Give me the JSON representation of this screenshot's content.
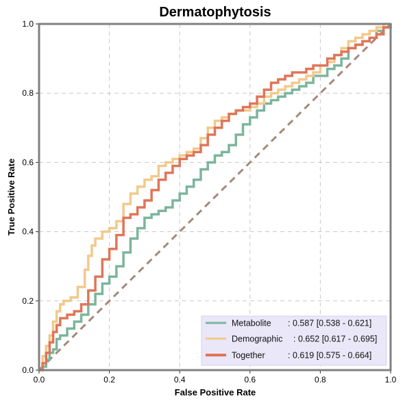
{
  "chart_data": {
    "type": "line",
    "title": "Dermatophytosis",
    "xlabel": "False Positive Rate",
    "ylabel": "True Positive Rate",
    "xlim": [
      0.0,
      1.0
    ],
    "ylim": [
      0.0,
      1.0
    ],
    "xticks": [
      "0.0",
      "0.2",
      "0.4",
      "0.6",
      "0.8",
      "1.0"
    ],
    "yticks": [
      "0.0",
      "0.2",
      "0.4",
      "0.6",
      "0.8",
      "1.0"
    ],
    "grid": true,
    "legend_position": "bottom-right",
    "diagonal": {
      "color": "#a6887a",
      "points": [
        [
          0,
          0
        ],
        [
          1,
          1
        ]
      ]
    },
    "series": [
      {
        "name": "Metabolite",
        "stat": ": 0.587 [0.538 - 0.621]",
        "color": "#7bb59c",
        "points": [
          [
            0,
            0
          ],
          [
            0.01,
            0.01
          ],
          [
            0.02,
            0.03
          ],
          [
            0.03,
            0.05
          ],
          [
            0.04,
            0.06
          ],
          [
            0.05,
            0.09
          ],
          [
            0.06,
            0.1
          ],
          [
            0.08,
            0.12
          ],
          [
            0.1,
            0.14
          ],
          [
            0.12,
            0.16
          ],
          [
            0.14,
            0.19
          ],
          [
            0.16,
            0.22
          ],
          [
            0.18,
            0.25
          ],
          [
            0.2,
            0.27
          ],
          [
            0.22,
            0.3
          ],
          [
            0.24,
            0.34
          ],
          [
            0.26,
            0.38
          ],
          [
            0.28,
            0.41
          ],
          [
            0.3,
            0.44
          ],
          [
            0.32,
            0.45
          ],
          [
            0.34,
            0.46
          ],
          [
            0.36,
            0.47
          ],
          [
            0.38,
            0.49
          ],
          [
            0.4,
            0.51
          ],
          [
            0.42,
            0.53
          ],
          [
            0.44,
            0.55
          ],
          [
            0.46,
            0.58
          ],
          [
            0.48,
            0.6
          ],
          [
            0.5,
            0.62
          ],
          [
            0.52,
            0.63
          ],
          [
            0.54,
            0.65
          ],
          [
            0.56,
            0.68
          ],
          [
            0.58,
            0.71
          ],
          [
            0.6,
            0.73
          ],
          [
            0.62,
            0.75
          ],
          [
            0.64,
            0.77
          ],
          [
            0.66,
            0.78
          ],
          [
            0.68,
            0.79
          ],
          [
            0.7,
            0.8
          ],
          [
            0.72,
            0.81
          ],
          [
            0.74,
            0.82
          ],
          [
            0.76,
            0.83
          ],
          [
            0.78,
            0.85
          ],
          [
            0.8,
            0.85
          ],
          [
            0.82,
            0.87
          ],
          [
            0.84,
            0.88
          ],
          [
            0.86,
            0.9
          ],
          [
            0.88,
            0.93
          ],
          [
            0.9,
            0.94
          ],
          [
            0.92,
            0.95
          ],
          [
            0.94,
            0.96
          ],
          [
            0.96,
            0.98
          ],
          [
            0.98,
            0.99
          ],
          [
            1.0,
            1.0
          ]
        ]
      },
      {
        "name": "Demographic",
        "stat": ": 0.652 [0.617 - 0.695]",
        "color": "#f2c98b",
        "points": [
          [
            0,
            0
          ],
          [
            0.01,
            0.04
          ],
          [
            0.02,
            0.07
          ],
          [
            0.03,
            0.1
          ],
          [
            0.04,
            0.14
          ],
          [
            0.05,
            0.17
          ],
          [
            0.06,
            0.19
          ],
          [
            0.07,
            0.2
          ],
          [
            0.09,
            0.21
          ],
          [
            0.11,
            0.24
          ],
          [
            0.13,
            0.29
          ],
          [
            0.14,
            0.33
          ],
          [
            0.15,
            0.36
          ],
          [
            0.16,
            0.38
          ],
          [
            0.18,
            0.4
          ],
          [
            0.2,
            0.41
          ],
          [
            0.22,
            0.43
          ],
          [
            0.24,
            0.48
          ],
          [
            0.26,
            0.51
          ],
          [
            0.28,
            0.53
          ],
          [
            0.3,
            0.55
          ],
          [
            0.32,
            0.56
          ],
          [
            0.34,
            0.59
          ],
          [
            0.36,
            0.6
          ],
          [
            0.38,
            0.61
          ],
          [
            0.4,
            0.62
          ],
          [
            0.42,
            0.63
          ],
          [
            0.44,
            0.64
          ],
          [
            0.46,
            0.67
          ],
          [
            0.48,
            0.7
          ],
          [
            0.5,
            0.72
          ],
          [
            0.52,
            0.73
          ],
          [
            0.54,
            0.74
          ],
          [
            0.56,
            0.75
          ],
          [
            0.58,
            0.75
          ],
          [
            0.6,
            0.76
          ],
          [
            0.62,
            0.77
          ],
          [
            0.64,
            0.79
          ],
          [
            0.66,
            0.8
          ],
          [
            0.68,
            0.81
          ],
          [
            0.7,
            0.82
          ],
          [
            0.72,
            0.83
          ],
          [
            0.74,
            0.84
          ],
          [
            0.76,
            0.85
          ],
          [
            0.78,
            0.86
          ],
          [
            0.8,
            0.88
          ],
          [
            0.82,
            0.89
          ],
          [
            0.84,
            0.91
          ],
          [
            0.86,
            0.93
          ],
          [
            0.88,
            0.95
          ],
          [
            0.9,
            0.96
          ],
          [
            0.92,
            0.97
          ],
          [
            0.94,
            0.98
          ],
          [
            0.96,
            0.99
          ],
          [
            0.98,
            1.0
          ],
          [
            1.0,
            1.0
          ]
        ]
      },
      {
        "name": "Together",
        "stat": ": 0.619 [0.575 - 0.664]",
        "color": "#e07558",
        "points": [
          [
            0,
            0
          ],
          [
            0.01,
            0.02
          ],
          [
            0.02,
            0.05
          ],
          [
            0.03,
            0.08
          ],
          [
            0.04,
            0.11
          ],
          [
            0.05,
            0.13
          ],
          [
            0.06,
            0.15
          ],
          [
            0.08,
            0.16
          ],
          [
            0.1,
            0.17
          ],
          [
            0.12,
            0.19
          ],
          [
            0.14,
            0.23
          ],
          [
            0.16,
            0.27
          ],
          [
            0.18,
            0.32
          ],
          [
            0.2,
            0.35
          ],
          [
            0.22,
            0.39
          ],
          [
            0.24,
            0.44
          ],
          [
            0.26,
            0.45
          ],
          [
            0.28,
            0.47
          ],
          [
            0.3,
            0.49
          ],
          [
            0.32,
            0.52
          ],
          [
            0.34,
            0.55
          ],
          [
            0.36,
            0.57
          ],
          [
            0.38,
            0.59
          ],
          [
            0.4,
            0.61
          ],
          [
            0.42,
            0.62
          ],
          [
            0.44,
            0.63
          ],
          [
            0.46,
            0.65
          ],
          [
            0.48,
            0.68
          ],
          [
            0.5,
            0.7
          ],
          [
            0.52,
            0.72
          ],
          [
            0.54,
            0.74
          ],
          [
            0.56,
            0.75
          ],
          [
            0.58,
            0.76
          ],
          [
            0.6,
            0.77
          ],
          [
            0.62,
            0.79
          ],
          [
            0.64,
            0.81
          ],
          [
            0.66,
            0.83
          ],
          [
            0.68,
            0.84
          ],
          [
            0.7,
            0.85
          ],
          [
            0.72,
            0.86
          ],
          [
            0.74,
            0.86
          ],
          [
            0.76,
            0.87
          ],
          [
            0.78,
            0.88
          ],
          [
            0.8,
            0.88
          ],
          [
            0.82,
            0.9
          ],
          [
            0.84,
            0.91
          ],
          [
            0.86,
            0.92
          ],
          [
            0.88,
            0.93
          ],
          [
            0.9,
            0.94
          ],
          [
            0.92,
            0.95
          ],
          [
            0.94,
            0.96
          ],
          [
            0.96,
            0.97
          ],
          [
            0.98,
            0.99
          ],
          [
            1.0,
            1.0
          ]
        ]
      }
    ]
  }
}
